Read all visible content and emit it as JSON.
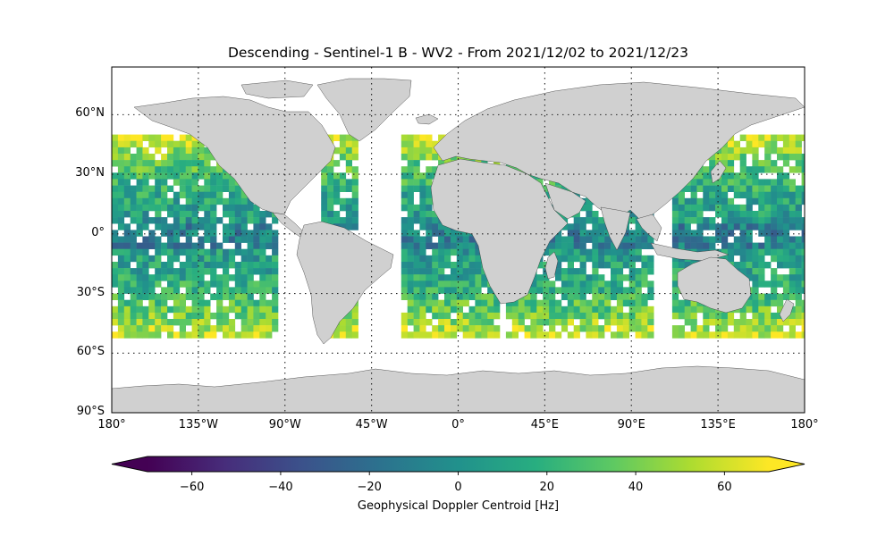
{
  "chart_data": {
    "type": "heatmap",
    "title": "Descending - Sentinel-1 B - WV2 - From 2021/12/02 to 2021/12/23",
    "projection": "PlateCarree",
    "xlim": [
      -180,
      180
    ],
    "ylim": [
      -90,
      90
    ],
    "grid": true,
    "lat_ticks": [
      {
        "value": 60,
        "label": "60°N"
      },
      {
        "value": 30,
        "label": "30°N"
      },
      {
        "value": 0,
        "label": "0°"
      },
      {
        "value": -30,
        "label": "30°S"
      },
      {
        "value": -60,
        "label": "60°S"
      },
      {
        "value": -90,
        "label": "90°S"
      }
    ],
    "lon_ticks": [
      {
        "value": -180,
        "label": "180°"
      },
      {
        "value": -135,
        "label": "135°W"
      },
      {
        "value": -90,
        "label": "90°W"
      },
      {
        "value": -45,
        "label": "45°W"
      },
      {
        "value": 0,
        "label": "0°"
      },
      {
        "value": 45,
        "label": "45°E"
      },
      {
        "value": 90,
        "label": "90°E"
      },
      {
        "value": 135,
        "label": "135°E"
      },
      {
        "value": 180,
        "label": "180°"
      }
    ],
    "colorbar": {
      "label": "Geophysical Doppler Centroid [Hz]",
      "colormap": "viridis",
      "range": [
        -70,
        70
      ],
      "extend": "both",
      "ticks": [
        -60,
        -40,
        -20,
        0,
        20,
        40,
        60
      ],
      "tick_labels": [
        "−60",
        "−40",
        "−20",
        "0",
        "20",
        "40",
        "60"
      ]
    },
    "land_color": "#d0d0d0",
    "data_coverage": {
      "description": "Gridded WV2 acquisitions over ocean, latitude approx. 50°S to 50°N",
      "lat_range": [
        -50,
        50
      ],
      "value_trend": "mostly 0 to 40 Hz near equator, higher (40-70 Hz) toward mid-latitude edges"
    }
  }
}
